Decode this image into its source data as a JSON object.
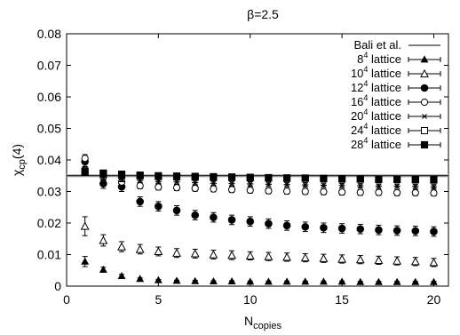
{
  "chart_data": {
    "type": "scatter",
    "title": "β=2.5",
    "ylabel": {
      "main": "χ",
      "sub": "cp",
      "suffix": "(4)"
    },
    "xlabel": {
      "main": "N",
      "sub": "copies"
    },
    "xlim": [
      0,
      20.8
    ],
    "ylim": [
      0,
      0.08
    ],
    "x_ticks": [
      0,
      5,
      10,
      15,
      20
    ],
    "y_ticks": [
      0,
      0.01,
      0.02,
      0.03,
      0.04,
      0.05,
      0.06,
      0.07,
      0.08
    ],
    "y_tick_labels": [
      "0",
      "0.01",
      "0.02",
      "0.03",
      "0.04",
      "0.05",
      "0.06",
      "0.07",
      "0.08"
    ],
    "grid": false,
    "legend_position": "top-right",
    "reference_line": {
      "name": "Bali et al.",
      "y": 0.035,
      "band": 0.0005
    },
    "series": [
      {
        "base": "8",
        "exp": "4",
        "suffix": " lattice",
        "marker": "triangle-filled",
        "x": [
          1,
          2,
          3,
          4,
          5,
          6,
          7,
          8,
          9,
          10,
          11,
          12,
          13,
          14,
          15,
          16,
          17,
          18,
          19,
          20
        ],
        "y": [
          0.0078,
          0.0052,
          0.0032,
          0.0023,
          0.0019,
          0.0017,
          0.0016,
          0.0015,
          0.0015,
          0.0014,
          0.0014,
          0.0014,
          0.0014,
          0.0014,
          0.0014,
          0.0013,
          0.0013,
          0.0013,
          0.0013,
          0.0013
        ],
        "err": [
          0.0016,
          0.0008,
          0.0005,
          0.0003,
          0.0002,
          0.0002,
          0.0002,
          0.0002,
          0.0002,
          0.0002,
          0.0002,
          0.0002,
          0.0002,
          0.0002,
          0.0002,
          0.0002,
          0.0002,
          0.0002,
          0.0002,
          0.0002
        ]
      },
      {
        "base": "10",
        "exp": "4",
        "suffix": " lattice",
        "marker": "triangle-open",
        "x": [
          1,
          2,
          3,
          4,
          5,
          6,
          7,
          8,
          9,
          10,
          11,
          12,
          13,
          14,
          15,
          16,
          17,
          18,
          19,
          20
        ],
        "y": [
          0.019,
          0.0145,
          0.0125,
          0.0117,
          0.011,
          0.0105,
          0.0103,
          0.01,
          0.0098,
          0.0096,
          0.0094,
          0.0092,
          0.009,
          0.0088,
          0.0086,
          0.0084,
          0.0082,
          0.008,
          0.0078,
          0.0075
        ],
        "err": [
          0.003,
          0.0018,
          0.0016,
          0.0015,
          0.0014,
          0.0014,
          0.0014,
          0.0014,
          0.0014,
          0.0013,
          0.0013,
          0.0013,
          0.0013,
          0.0013,
          0.0013,
          0.0013,
          0.0013,
          0.0013,
          0.0013,
          0.0013
        ]
      },
      {
        "base": "12",
        "exp": "4",
        "suffix": " lattice",
        "marker": "circle-filled",
        "x": [
          1,
          2,
          3,
          4,
          5,
          6,
          7,
          8,
          9,
          10,
          11,
          12,
          13,
          14,
          15,
          16,
          17,
          18,
          19,
          20
        ],
        "y": [
          0.0395,
          0.0325,
          0.0315,
          0.0268,
          0.0253,
          0.024,
          0.0225,
          0.0218,
          0.021,
          0.0205,
          0.0198,
          0.0192,
          0.0188,
          0.0185,
          0.0183,
          0.0181,
          0.0178,
          0.0176,
          0.0175,
          0.0173
        ],
        "err": [
          0.0015,
          0.0015,
          0.0015,
          0.0015,
          0.0015,
          0.0015,
          0.0015,
          0.0015,
          0.0015,
          0.0015,
          0.0015,
          0.0015,
          0.0015,
          0.0015,
          0.0015,
          0.0015,
          0.0015,
          0.0015,
          0.0015,
          0.0015
        ]
      },
      {
        "base": "16",
        "exp": "4",
        "suffix": " lattice",
        "marker": "circle-open",
        "x": [
          1,
          2,
          3,
          4,
          5,
          6,
          7,
          8,
          9,
          10,
          11,
          12,
          13,
          14,
          15,
          16,
          17,
          18,
          19,
          20
        ],
        "y": [
          0.0405,
          0.0345,
          0.033,
          0.0318,
          0.0314,
          0.0312,
          0.031,
          0.0308,
          0.0306,
          0.0304,
          0.0302,
          0.0301,
          0.03,
          0.0299,
          0.0298,
          0.0297,
          0.0297,
          0.0296,
          0.0296,
          0.0295
        ],
        "err": [
          0.0012,
          0.001,
          0.0009,
          0.0009,
          0.0009,
          0.0009,
          0.0009,
          0.0009,
          0.0009,
          0.0009,
          0.0009,
          0.0009,
          0.0009,
          0.0009,
          0.0009,
          0.0009,
          0.0009,
          0.0009,
          0.0009,
          0.0009
        ]
      },
      {
        "base": "20",
        "exp": "4",
        "suffix": " lattice",
        "marker": "star",
        "x": [
          1,
          2,
          3,
          4,
          5,
          6,
          7,
          8,
          9,
          10,
          11,
          12,
          13,
          14,
          15,
          16,
          17,
          18,
          19,
          20
        ],
        "y": [
          0.037,
          0.0345,
          0.0338,
          0.0335,
          0.0332,
          0.033,
          0.0328,
          0.0326,
          0.0325,
          0.0324,
          0.0323,
          0.0322,
          0.0321,
          0.032,
          0.0319,
          0.0318,
          0.0317,
          0.0317,
          0.0316,
          0.0315
        ],
        "err": [
          0.0008,
          0.0007,
          0.0007,
          0.0007,
          0.0007,
          0.0007,
          0.0007,
          0.0007,
          0.0007,
          0.0007,
          0.0007,
          0.0007,
          0.0007,
          0.0007,
          0.0007,
          0.0007,
          0.0007,
          0.0007,
          0.0007,
          0.0007
        ]
      },
      {
        "base": "24",
        "exp": "4",
        "suffix": " lattice",
        "marker": "square-open",
        "x": [
          1,
          2,
          3,
          4,
          5,
          6,
          7,
          8,
          9,
          10,
          11,
          12,
          13,
          14,
          15,
          16,
          17,
          18,
          19,
          20
        ],
        "y": [
          0.0365,
          0.0358,
          0.0355,
          0.0352,
          0.035,
          0.0349,
          0.0348,
          0.0347,
          0.0346,
          0.0345,
          0.0344,
          0.0343,
          0.0342,
          0.0341,
          0.034,
          0.0339,
          0.0338,
          0.0338,
          0.0337,
          0.0336
        ],
        "err": [
          0.0006,
          0.0006,
          0.0005,
          0.0005,
          0.0005,
          0.0005,
          0.0005,
          0.0005,
          0.0005,
          0.0005,
          0.0005,
          0.0005,
          0.0005,
          0.0005,
          0.0005,
          0.0005,
          0.0005,
          0.0005,
          0.0005,
          0.0005
        ]
      },
      {
        "base": "28",
        "exp": "4",
        "suffix": " lattice",
        "marker": "square-filled",
        "x": [
          1,
          2,
          3,
          4,
          5,
          6,
          7,
          8,
          9,
          10,
          11,
          12,
          13,
          14,
          15,
          16,
          17,
          18,
          19,
          20
        ],
        "y": [
          0.0362,
          0.0358,
          0.0352,
          0.035,
          0.0348,
          0.0347,
          0.0346,
          0.0345,
          0.0345,
          0.0344,
          0.0343,
          0.0342,
          0.0342,
          0.0341,
          0.034,
          0.034,
          0.0339,
          0.0339,
          0.0338,
          0.0338
        ],
        "err": [
          0.0005,
          0.0005,
          0.0005,
          0.0005,
          0.0005,
          0.0005,
          0.0005,
          0.0005,
          0.0005,
          0.0005,
          0.0005,
          0.0005,
          0.0005,
          0.0005,
          0.0005,
          0.0005,
          0.0005,
          0.0005,
          0.0005,
          0.0005
        ]
      }
    ]
  }
}
